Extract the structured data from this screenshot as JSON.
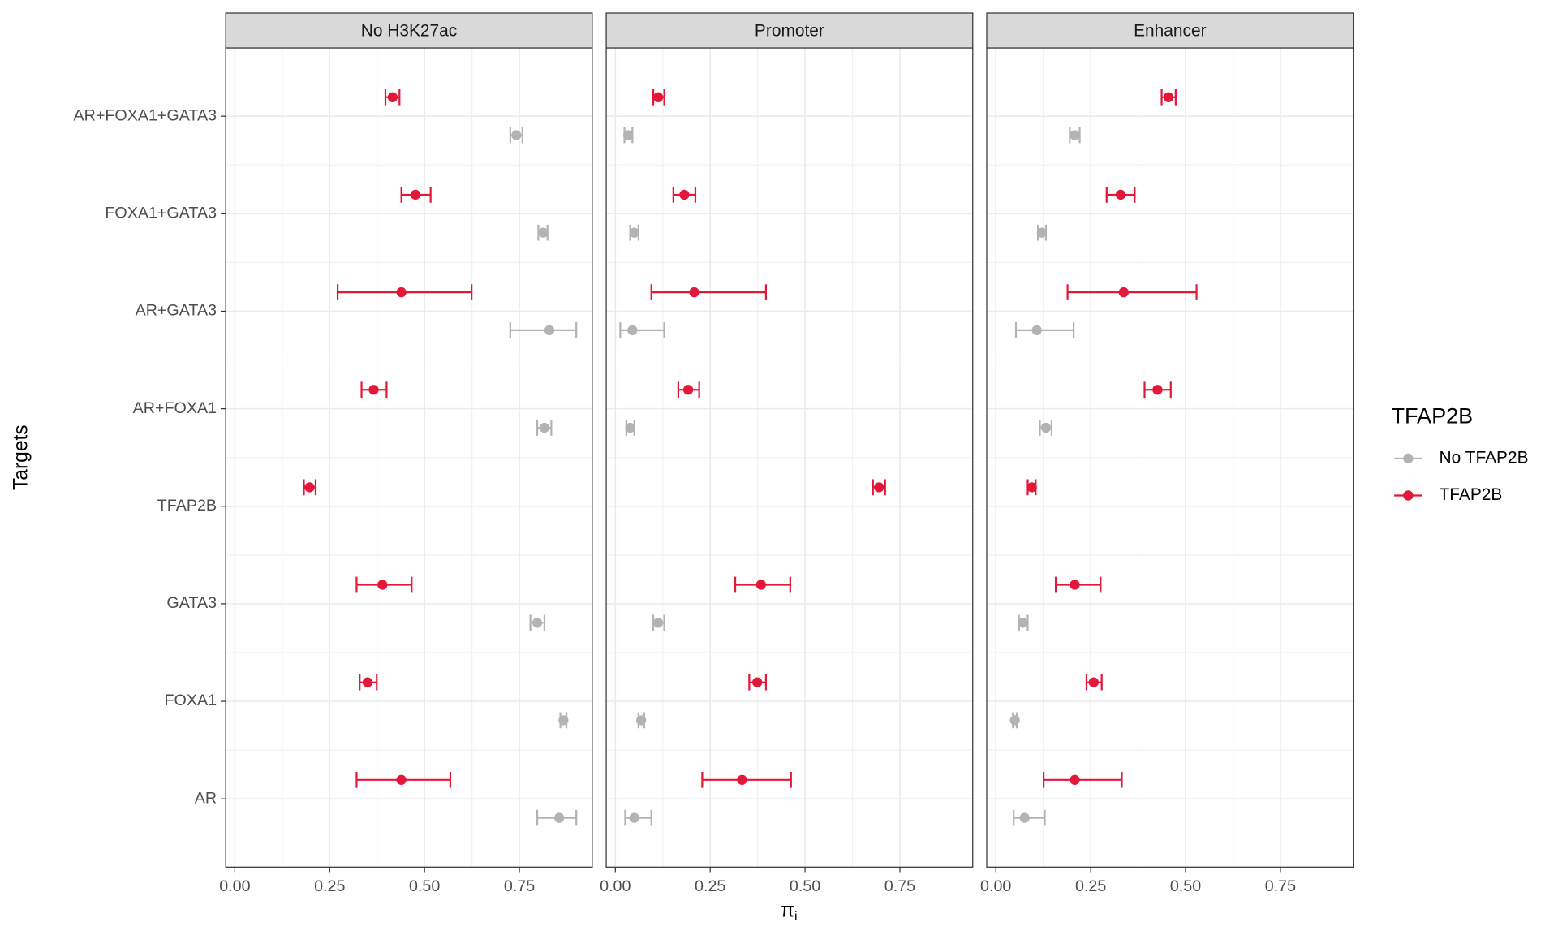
{
  "chart_data": {
    "type": "errorbar",
    "y_label": "Targets",
    "x_label": "π",
    "x_label_sub": "i",
    "legend_title": "TFAP2B",
    "grid": true,
    "categories": [
      "AR+FOXA1+GATA3",
      "FOXA1+GATA3",
      "AR+GATA3",
      "AR+FOXA1",
      "TFAP2B",
      "GATA3",
      "FOXA1",
      "AR"
    ],
    "xlim": [
      -0.024,
      0.942
    ],
    "xticks": [
      {
        "value": 0,
        "label": "0.00"
      },
      {
        "value": 0.25,
        "label": "0.25"
      },
      {
        "value": 0.5,
        "label": "0.50"
      },
      {
        "value": 0.75,
        "label": "0.75"
      }
    ],
    "facets": [
      {
        "title": "No H3K27ac",
        "series": [
          {
            "name": "No TFAP2B",
            "color": "#b3b3b3",
            "values": [
              0.742,
              0.813,
              0.829,
              0.816,
              null,
              0.797,
              0.866,
              0.855
            ],
            "lower": [
              0.726,
              0.8,
              0.726,
              0.797,
              null,
              0.779,
              0.858,
              0.797
            ],
            "upper": [
              0.758,
              0.824,
              0.9,
              0.834,
              null,
              0.816,
              0.874,
              0.9
            ]
          },
          {
            "name": "TFAP2B",
            "color": "#e3173a",
            "values": [
              0.416,
              0.476,
              0.439,
              0.366,
              0.197,
              0.389,
              0.35,
              0.439
            ],
            "lower": [
              0.397,
              0.439,
              0.271,
              0.334,
              0.182,
              0.321,
              0.329,
              0.321
            ],
            "upper": [
              0.434,
              0.516,
              0.624,
              0.4,
              0.213,
              0.466,
              0.374,
              0.568
            ]
          }
        ]
      },
      {
        "title": "Promoter",
        "series": [
          {
            "name": "No TFAP2B",
            "color": "#b3b3b3",
            "values": [
              0.034,
              0.05,
              0.045,
              0.039,
              null,
              0.113,
              0.068,
              0.05
            ],
            "lower": [
              0.024,
              0.039,
              0.013,
              0.029,
              null,
              0.1,
              0.061,
              0.026
            ],
            "upper": [
              0.045,
              0.061,
              0.129,
              0.05,
              null,
              0.129,
              0.076,
              0.095
            ]
          },
          {
            "name": "TFAP2B",
            "color": "#e3173a",
            "values": [
              0.113,
              0.182,
              0.208,
              0.192,
              0.695,
              0.384,
              0.374,
              0.334
            ],
            "lower": [
              0.1,
              0.153,
              0.095,
              0.166,
              0.679,
              0.316,
              0.353,
              0.229
            ],
            "upper": [
              0.129,
              0.211,
              0.397,
              0.221,
              0.711,
              0.461,
              0.397,
              0.463
            ]
          }
        ]
      },
      {
        "title": "Enhancer",
        "series": [
          {
            "name": "No TFAP2B",
            "color": "#b3b3b3",
            "values": [
              0.208,
              0.121,
              0.108,
              0.132,
              null,
              0.071,
              0.05,
              0.076
            ],
            "lower": [
              0.195,
              0.111,
              0.053,
              0.116,
              null,
              0.061,
              0.045,
              0.047
            ],
            "upper": [
              0.221,
              0.132,
              0.205,
              0.147,
              null,
              0.084,
              0.055,
              0.129
            ]
          },
          {
            "name": "TFAP2B",
            "color": "#e3173a",
            "values": [
              0.455,
              0.329,
              0.337,
              0.426,
              0.095,
              0.208,
              0.258,
              0.208
            ],
            "lower": [
              0.437,
              0.292,
              0.189,
              0.392,
              0.084,
              0.158,
              0.239,
              0.126
            ],
            "upper": [
              0.474,
              0.366,
              0.529,
              0.461,
              0.105,
              0.276,
              0.279,
              0.332
            ]
          }
        ]
      }
    ]
  }
}
